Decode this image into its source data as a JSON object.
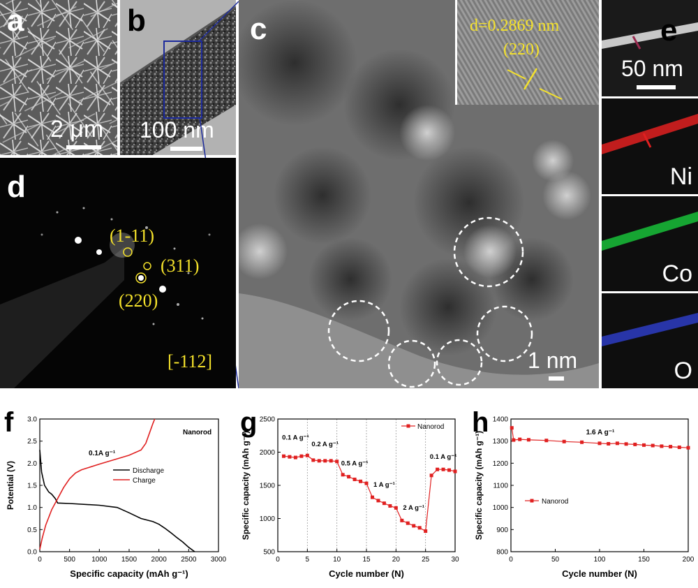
{
  "panels": {
    "a": {
      "label": "a",
      "scale": "2 μm"
    },
    "b": {
      "label": "b",
      "scale": "100 nm"
    },
    "c": {
      "label": "c",
      "scale": "1 nm",
      "inset_d": "d=0.2869 nm",
      "inset_plane": "(220)"
    },
    "d": {
      "label": "d",
      "spots": [
        "(1-11)",
        "(311)",
        "(220)"
      ],
      "zone": "[-112]"
    },
    "e": {
      "label": "e",
      "scale": "50 nm",
      "maps": [
        {
          "element": "Ni",
          "color": "#e02020"
        },
        {
          "element": "Co",
          "color": "#18c038"
        },
        {
          "element": "O",
          "color": "#3040d0"
        }
      ]
    }
  },
  "chart_data": [
    {
      "panel": "f",
      "type": "line",
      "xlabel": "Specific capacity (mAh g⁻¹)",
      "ylabel": "Potential (V)",
      "xlim": [
        0,
        3000
      ],
      "ylim": [
        0,
        3.0
      ],
      "xticks": [
        "0",
        "500",
        "1000",
        "1500",
        "2000",
        "2500",
        "3000"
      ],
      "yticks": [
        "0.0",
        "0.5",
        "1.0",
        "1.5",
        "2.0",
        "2.5",
        "3.0"
      ],
      "legend_title": "Nanorod",
      "annotation": "0.1A g⁻¹",
      "series": [
        {
          "name": "Discharge",
          "color": "#000000",
          "x": [
            0,
            30,
            80,
            150,
            200,
            260,
            300,
            500,
            1000,
            1300,
            1500,
            1700,
            1900,
            2000,
            2100,
            2200,
            2300,
            2400,
            2500,
            2600
          ],
          "y": [
            2.3,
            1.8,
            1.5,
            1.35,
            1.3,
            1.2,
            1.1,
            1.09,
            1.05,
            1.0,
            0.88,
            0.75,
            0.68,
            0.62,
            0.53,
            0.43,
            0.32,
            0.22,
            0.1,
            0.0
          ]
        },
        {
          "name": "Charge",
          "color": "#e02020",
          "x": [
            0,
            40,
            100,
            200,
            300,
            400,
            500,
            600,
            700,
            1000,
            1300,
            1500,
            1700,
            1780,
            1820,
            1860,
            1900,
            1930
          ],
          "y": [
            0.05,
            0.3,
            0.6,
            0.95,
            1.2,
            1.45,
            1.65,
            1.78,
            1.85,
            1.98,
            2.1,
            2.18,
            2.3,
            2.45,
            2.6,
            2.75,
            2.9,
            3.0
          ]
        }
      ]
    },
    {
      "panel": "g",
      "type": "line",
      "xlabel": "Cycle number (N)",
      "ylabel": "Specific capacity (mAh g⁻¹)",
      "xlim": [
        0,
        30
      ],
      "ylim": [
        500,
        2500
      ],
      "xticks": [
        "0",
        "5",
        "10",
        "15",
        "20",
        "25",
        "30"
      ],
      "yticks": [
        "500",
        "1000",
        "1500",
        "2000",
        "2500"
      ],
      "vlines": [
        5,
        10,
        15,
        20,
        25
      ],
      "annotations": [
        {
          "text": "0.1 A g⁻¹",
          "x": 3,
          "y": 2190
        },
        {
          "text": "0.2 A g⁻¹",
          "x": 8,
          "y": 2090
        },
        {
          "text": "0.5 A g⁻¹",
          "x": 13,
          "y": 1800
        },
        {
          "text": "1 A g⁻¹",
          "x": 18,
          "y": 1480
        },
        {
          "text": "2 A g⁻¹",
          "x": 23,
          "y": 1130
        },
        {
          "text": "0.1 A g⁻¹",
          "x": 28,
          "y": 1900
        }
      ],
      "series": [
        {
          "name": "Nanorod",
          "color": "#e02020",
          "x": [
            1,
            2,
            3,
            4,
            5,
            6,
            7,
            8,
            9,
            10,
            11,
            12,
            13,
            14,
            15,
            16,
            17,
            18,
            19,
            20,
            21,
            22,
            23,
            24,
            25,
            26,
            27,
            28,
            29,
            30
          ],
          "y": [
            1940,
            1930,
            1920,
            1940,
            1950,
            1880,
            1870,
            1870,
            1870,
            1860,
            1660,
            1630,
            1590,
            1560,
            1530,
            1320,
            1270,
            1230,
            1190,
            1160,
            970,
            930,
            890,
            860,
            810,
            1650,
            1740,
            1740,
            1730,
            1710
          ]
        }
      ]
    },
    {
      "panel": "h",
      "type": "line",
      "xlabel": "Cycle number (N)",
      "ylabel": "Specific capacity (mAh g⁻¹)",
      "xlim": [
        0,
        200
      ],
      "ylim": [
        800,
        1400
      ],
      "xticks": [
        "0",
        "50",
        "100",
        "150",
        "200"
      ],
      "yticks": [
        "800",
        "900",
        "1000",
        "1100",
        "1200",
        "1300",
        "1400"
      ],
      "annotation": "1.6 A g⁻¹",
      "series": [
        {
          "name": "Nanorod",
          "color": "#e02020",
          "x": [
            1,
            3,
            10,
            20,
            40,
            60,
            80,
            100,
            110,
            120,
            130,
            140,
            150,
            160,
            170,
            180,
            190,
            200
          ],
          "y": [
            1360,
            1305,
            1308,
            1306,
            1303,
            1298,
            1295,
            1290,
            1288,
            1290,
            1287,
            1285,
            1282,
            1280,
            1277,
            1275,
            1272,
            1270
          ]
        }
      ]
    }
  ]
}
